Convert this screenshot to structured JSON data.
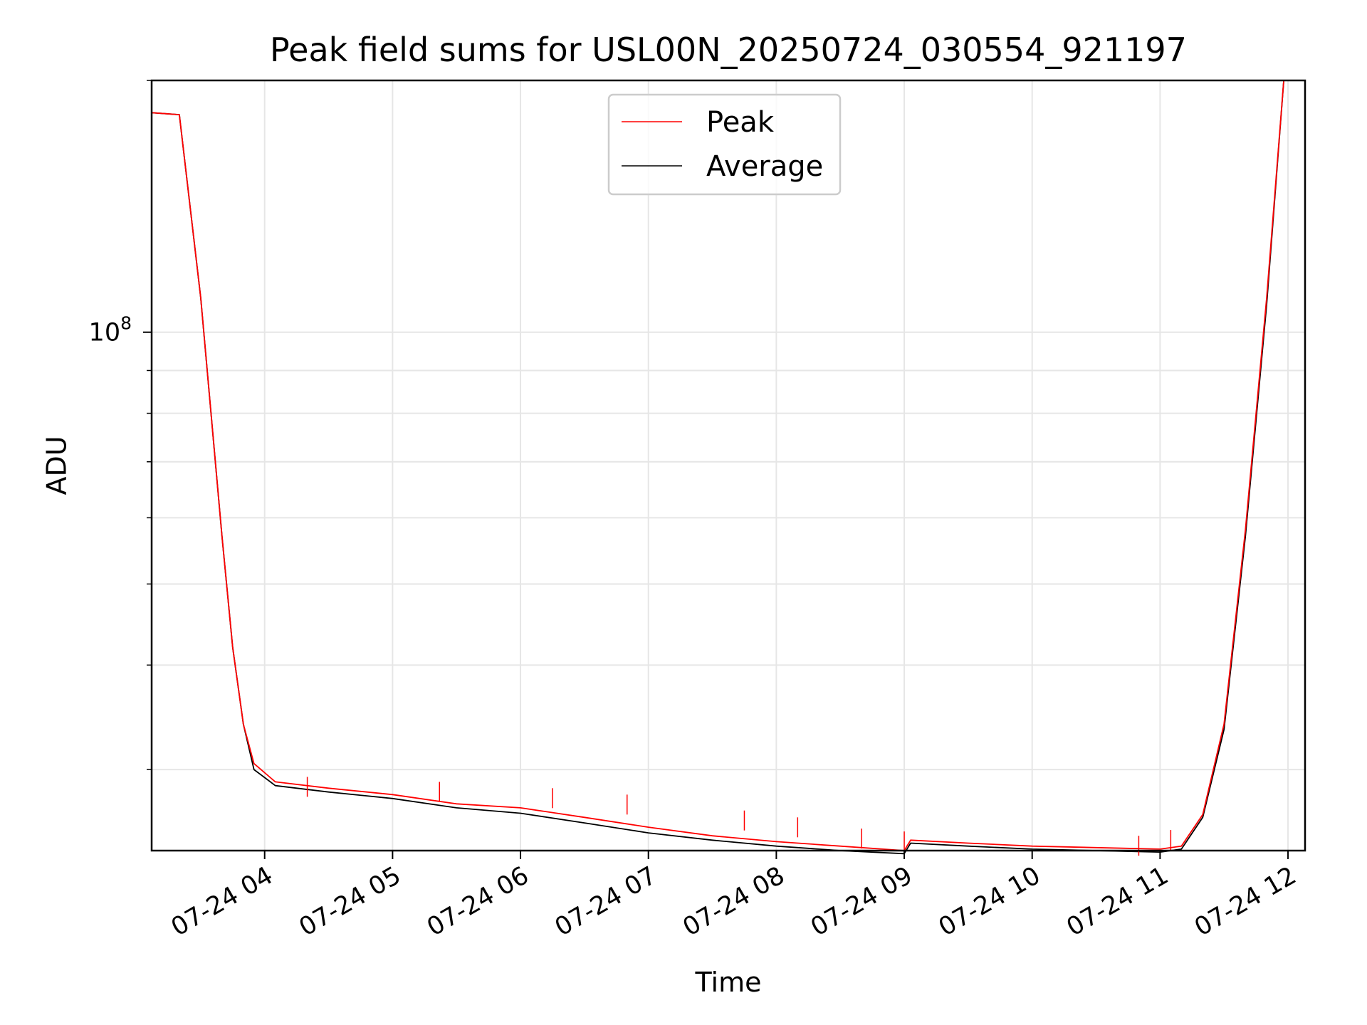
{
  "chart_data": {
    "type": "line",
    "title": "Peak field sums for USL00N_20250724_030554_921197",
    "xlabel": "Time",
    "ylabel": "ADU",
    "y_scale": "log",
    "ylim": [
      24000000,
      200000000
    ],
    "xlim": [
      "2025-07-24 03:07",
      "2025-07-24 12:08"
    ],
    "x_tick_labels": [
      "07-24 04",
      "07-24 05",
      "07-24 06",
      "07-24 07",
      "07-24 08",
      "07-24 09",
      "07-24 10",
      "07-24 11",
      "07-24 12"
    ],
    "x_ticks": [
      "2025-07-24 04:00",
      "2025-07-24 05:00",
      "2025-07-24 06:00",
      "2025-07-24 07:00",
      "2025-07-24 08:00",
      "2025-07-24 09:00",
      "2025-07-24 10:00",
      "2025-07-24 11:00",
      "2025-07-24 12:00"
    ],
    "y_tick_labels": [
      {
        "base": "10",
        "exp": "8"
      }
    ],
    "y_major_ticks": [
      100000000
    ],
    "y_minor_ticks": [
      30000000,
      40000000,
      50000000,
      60000000,
      70000000,
      80000000,
      90000000,
      200000000
    ],
    "grid": true,
    "legend_position": "upper center",
    "series": [
      {
        "name": "Peak",
        "color": "#ff0000",
        "x": [
          "2025-07-24 03:07",
          "2025-07-24 03:20",
          "2025-07-24 03:30",
          "2025-07-24 03:40",
          "2025-07-24 03:45",
          "2025-07-24 03:50",
          "2025-07-24 03:55",
          "2025-07-24 04:05",
          "2025-07-24 04:30",
          "2025-07-24 05:00",
          "2025-07-24 05:30",
          "2025-07-24 06:00",
          "2025-07-24 06:30",
          "2025-07-24 07:00",
          "2025-07-24 07:30",
          "2025-07-24 08:00",
          "2025-07-24 08:30",
          "2025-07-24 09:00",
          "2025-07-24 09:03",
          "2025-07-24 09:30",
          "2025-07-24 10:00",
          "2025-07-24 10:30",
          "2025-07-24 11:00",
          "2025-07-24 11:10",
          "2025-07-24 11:20",
          "2025-07-24 11:30",
          "2025-07-24 11:40",
          "2025-07-24 11:50",
          "2025-07-24 11:58"
        ],
        "y": [
          183000000,
          182000000,
          110000000,
          57000000,
          42000000,
          34000000,
          30500000,
          29000000,
          28500000,
          28000000,
          27300000,
          27000000,
          26300000,
          25600000,
          25000000,
          24600000,
          24300000,
          24000000,
          24700000,
          24500000,
          24300000,
          24200000,
          24100000,
          24300000,
          26500000,
          34000000,
          58000000,
          110000000,
          200000000
        ],
        "spikes": [
          {
            "x": "2025-07-24 04:20",
            "y": 29400000
          },
          {
            "x": "2025-07-24 05:22",
            "y": 29000000
          },
          {
            "x": "2025-07-24 06:15",
            "y": 28500000
          },
          {
            "x": "2025-07-24 06:50",
            "y": 28000000
          },
          {
            "x": "2025-07-24 07:45",
            "y": 26800000
          },
          {
            "x": "2025-07-24 08:10",
            "y": 26300000
          },
          {
            "x": "2025-07-24 08:40",
            "y": 25500000
          },
          {
            "x": "2025-07-24 09:00",
            "y": 25300000
          },
          {
            "x": "2025-07-24 10:50",
            "y": 25000000
          },
          {
            "x": "2025-07-24 11:05",
            "y": 25400000
          }
        ]
      },
      {
        "name": "Average",
        "color": "#000000",
        "x": [
          "2025-07-24 03:07",
          "2025-07-24 03:20",
          "2025-07-24 03:30",
          "2025-07-24 03:40",
          "2025-07-24 03:45",
          "2025-07-24 03:50",
          "2025-07-24 03:55",
          "2025-07-24 04:05",
          "2025-07-24 04:30",
          "2025-07-24 05:00",
          "2025-07-24 05:30",
          "2025-07-24 06:00",
          "2025-07-24 06:30",
          "2025-07-24 07:00",
          "2025-07-24 07:30",
          "2025-07-24 08:00",
          "2025-07-24 08:30",
          "2025-07-24 09:00",
          "2025-07-24 09:03",
          "2025-07-24 09:30",
          "2025-07-24 10:00",
          "2025-07-24 10:30",
          "2025-07-24 11:00",
          "2025-07-24 11:10",
          "2025-07-24 11:20",
          "2025-07-24 11:30",
          "2025-07-24 11:40",
          "2025-07-24 11:50",
          "2025-07-24 11:58"
        ],
        "y": [
          183000000,
          182000000,
          110000000,
          57000000,
          42000000,
          34000000,
          30000000,
          28700000,
          28200000,
          27700000,
          27000000,
          26600000,
          25900000,
          25200000,
          24700000,
          24300000,
          24000000,
          23800000,
          24500000,
          24300000,
          24100000,
          24000000,
          23900000,
          24100000,
          26300000,
          33500000,
          57000000,
          108000000,
          200000000
        ]
      }
    ]
  }
}
